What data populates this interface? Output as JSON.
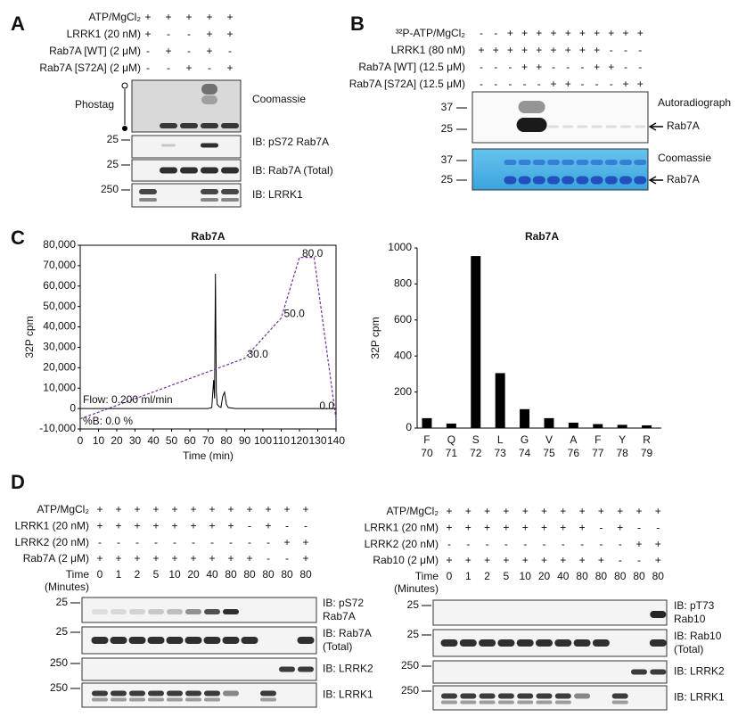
{
  "panel_labels": [
    "A",
    "B",
    "C",
    "D"
  ],
  "panel_a": {
    "conditions": [
      {
        "label": "ATP/MgCl₂",
        "values": [
          "+",
          "+",
          "+",
          "+",
          "+"
        ]
      },
      {
        "label": "LRRK1 (20 nM)",
        "values": [
          "+",
          "-",
          "-",
          "+",
          "+"
        ]
      },
      {
        "label": "Rab7A [WT] (2 μM)",
        "values": [
          "-",
          "+",
          "-",
          "+",
          "-"
        ]
      },
      {
        "label": "Rab7A [S72A] (2 μM)",
        "values": [
          "-",
          "-",
          "+",
          "-",
          "+"
        ]
      }
    ],
    "gel_label": "Phostag",
    "blots": [
      {
        "label": "Coomassie"
      },
      {
        "label": "IB: pS72 Rab7A",
        "marker": "25"
      },
      {
        "label": "IB: Rab7A (Total)",
        "marker": "25"
      },
      {
        "label": "IB: LRRK1",
        "marker": "250"
      }
    ]
  },
  "panel_b": {
    "conditions": [
      {
        "label": "³²P-ATP/MgCl₂",
        "values": [
          "-",
          "-",
          "+",
          "+",
          "+",
          "+",
          "+",
          "+",
          "+",
          "+",
          "+",
          "+"
        ]
      },
      {
        "label": "LRRK1 (80 nM)",
        "values": [
          "+",
          "+",
          "+",
          "+",
          "+",
          "+",
          "+",
          "+",
          "+",
          "-",
          "-",
          "-"
        ]
      },
      {
        "label": "Rab7A [WT] (12.5 μM)",
        "values": [
          "-",
          "-",
          "-",
          "+",
          "+",
          "-",
          "-",
          "-",
          "+",
          "+",
          "-",
          "-"
        ]
      },
      {
        "label": "Rab7A [S72A] (12.5 μM)",
        "values": [
          "-",
          "-",
          "-",
          "-",
          "-",
          "+",
          "+",
          "-",
          "-",
          "-",
          "+",
          "+"
        ]
      }
    ],
    "blots": [
      {
        "label": "Autoradiograph",
        "markers": [
          "37",
          "25"
        ],
        "band": "Rab7A"
      },
      {
        "label": "Coomassie",
        "markers": [
          "37",
          "25"
        ],
        "band": "Rab7A"
      }
    ]
  },
  "chart_data": [
    {
      "type": "line",
      "title": "Rab7A",
      "x_label": "Time (min)",
      "y_label": "32P cpm",
      "xlim": [
        0,
        140
      ],
      "xticks": [
        0,
        10,
        20,
        30,
        40,
        50,
        60,
        70,
        80,
        90,
        100,
        110,
        120,
        130,
        140
      ],
      "ylim": [
        -10000,
        80000
      ],
      "yticks": [
        {
          "value": -10000,
          "label": "-10,000"
        },
        0,
        {
          "value": 10000,
          "label": "10,000"
        },
        {
          "value": 20000,
          "label": "20,000"
        },
        {
          "value": 30000,
          "label": "30,000"
        },
        {
          "value": 40000,
          "label": "40,000"
        },
        {
          "value": 50000,
          "label": "50,000"
        },
        {
          "value": 60000,
          "label": "60,000"
        },
        {
          "value": 70000,
          "label": "70,000"
        },
        {
          "value": 80000,
          "label": "80,000"
        }
      ],
      "y2lim": [
        -5,
        86
      ],
      "annotations": [
        "Flow: 0.200 ml/min",
        "%B: 0.0 %"
      ],
      "series": [
        {
          "color": "#000000",
          "x": [
            0,
            70,
            72,
            73,
            73.5,
            74,
            74.5,
            75,
            76,
            77,
            78,
            79,
            80,
            81,
            85,
            140
          ],
          "values": [
            0,
            0,
            500,
            14000,
            5000,
            66000,
            8000,
            2000,
            1000,
            500,
            6000,
            8000,
            2000,
            500,
            0,
            0
          ]
        },
        {
          "color": "#7030a0",
          "axis": "y2",
          "dashed": true,
          "x": [
            0,
            90,
            110,
            120,
            128,
            140
          ],
          "values": [
            0,
            30,
            50,
            80,
            80,
            0
          ],
          "value_labels": [
            null,
            "30.0",
            "50.0",
            "80.0",
            null,
            "0.0"
          ]
        }
      ]
    },
    {
      "type": "bar",
      "title": "Rab7A",
      "y_label": "32P cpm",
      "categories": [
        "F",
        "Q",
        "S",
        "L",
        "G",
        "V",
        "A",
        "F",
        "Y",
        "R"
      ],
      "positions": [
        70,
        71,
        72,
        73,
        74,
        75,
        76,
        77,
        78,
        79
      ],
      "values": [
        55,
        25,
        955,
        305,
        105,
        55,
        30,
        22,
        18,
        15
      ],
      "color": "#000000",
      "ylim": [
        0,
        1000
      ],
      "yticks": [
        0,
        200,
        400,
        600,
        800,
        1000
      ]
    }
  ],
  "panel_d": [
    {
      "conditions": [
        {
          "label": "ATP/MgCl₂",
          "values": [
            "+",
            "+",
            "+",
            "+",
            "+",
            "+",
            "+",
            "+",
            "+",
            "+",
            "+",
            "+"
          ]
        },
        {
          "label": "LRRK1 (20 nM)",
          "values": [
            "+",
            "+",
            "+",
            "+",
            "+",
            "+",
            "+",
            "+",
            "-",
            "+",
            "-",
            "-"
          ]
        },
        {
          "label": "LRRK2 (20 nM)",
          "values": [
            "-",
            "-",
            "-",
            "-",
            "-",
            "-",
            "-",
            "-",
            "-",
            "-",
            "+",
            "+"
          ]
        },
        {
          "label": "Rab7A (2 μM)",
          "values": [
            "+",
            "+",
            "+",
            "+",
            "+",
            "+",
            "+",
            "+",
            "+",
            "-",
            "-",
            "+"
          ]
        }
      ],
      "time_label": [
        "Time",
        "(Minutes)"
      ],
      "times": [
        0,
        1,
        2,
        5,
        10,
        20,
        40,
        80,
        80,
        80,
        80,
        80
      ],
      "blots": [
        {
          "label": [
            "IB: pS72",
            "Rab7A"
          ],
          "marker": "25"
        },
        {
          "label": [
            "IB: Rab7A",
            "(Total)"
          ],
          "marker": "25"
        },
        {
          "label": [
            "IB: LRRK2"
          ],
          "marker": "250"
        },
        {
          "label": [
            "IB: LRRK1"
          ],
          "marker": "250"
        }
      ]
    },
    {
      "conditions": [
        {
          "label": "ATP/MgCl₂",
          "values": [
            "+",
            "+",
            "+",
            "+",
            "+",
            "+",
            "+",
            "+",
            "+",
            "+",
            "+",
            "+"
          ]
        },
        {
          "label": "LRRK1 (20 nM)",
          "values": [
            "+",
            "+",
            "+",
            "+",
            "+",
            "+",
            "+",
            "+",
            "-",
            "+",
            "-",
            "-"
          ]
        },
        {
          "label": "LRRK2 (20 nM)",
          "values": [
            "-",
            "-",
            "-",
            "-",
            "-",
            "-",
            "-",
            "-",
            "-",
            "-",
            "+",
            "+"
          ]
        },
        {
          "label": "Rab10 (2 μM)",
          "values": [
            "+",
            "+",
            "+",
            "+",
            "+",
            "+",
            "+",
            "+",
            "+",
            "-",
            "-",
            "+"
          ]
        }
      ],
      "time_label": [
        "Time",
        "(Minutes)"
      ],
      "times": [
        0,
        1,
        2,
        5,
        10,
        20,
        40,
        80,
        80,
        80,
        80,
        80
      ],
      "blots": [
        {
          "label": [
            "IB: pT73",
            "Rab10"
          ],
          "marker": "25"
        },
        {
          "label": [
            "IB: Rab10",
            "(Total)"
          ],
          "marker": "25"
        },
        {
          "label": [
            "IB: LRRK2"
          ],
          "marker": "250"
        },
        {
          "label": [
            "IB: LRRK1"
          ],
          "marker": "250"
        }
      ]
    }
  ]
}
